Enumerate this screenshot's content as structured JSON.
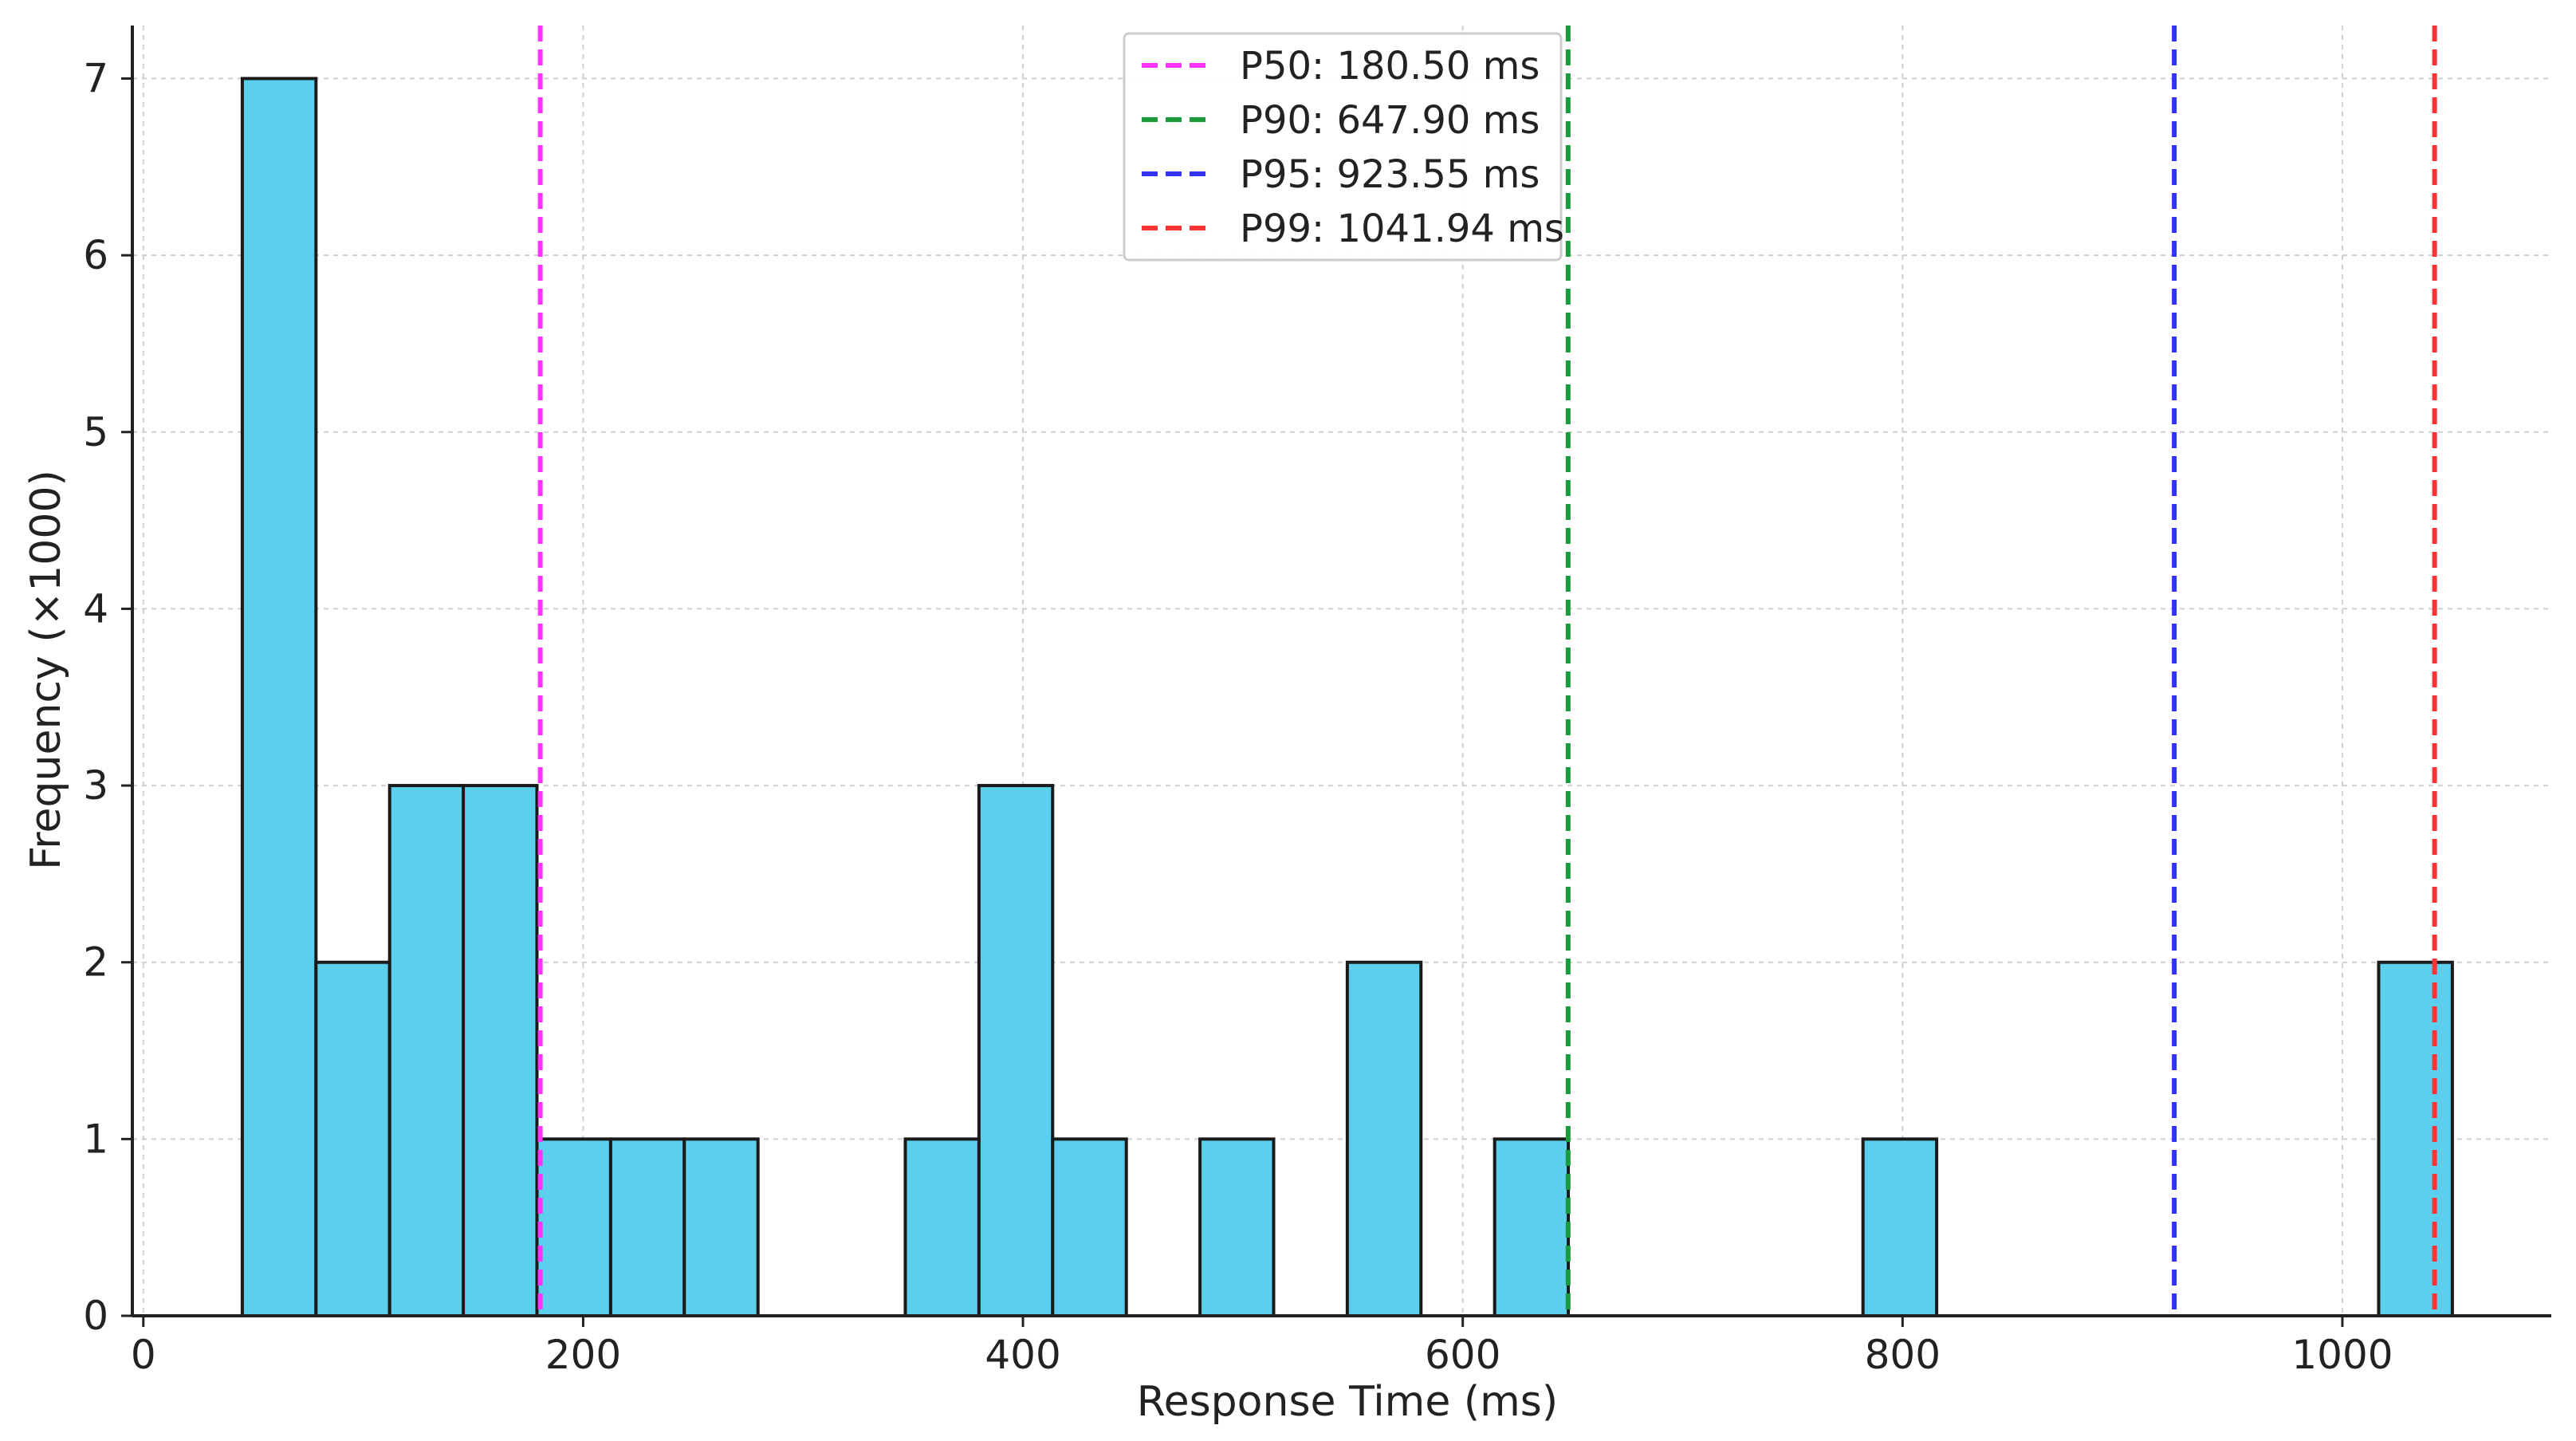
{
  "chart_data": {
    "type": "bar",
    "xlabel": "Response Time (ms)",
    "ylabel": "Frequency (×1000)",
    "xlim": [
      -5,
      1095
    ],
    "ylim": [
      0,
      7.3
    ],
    "x_ticks": [
      0,
      200,
      400,
      600,
      800,
      1000
    ],
    "y_ticks": [
      0,
      1,
      2,
      3,
      4,
      5,
      6,
      7
    ],
    "grid": true,
    "bin_width": 33.5,
    "bins": [
      {
        "x0": 45,
        "x1": 78.5,
        "value": 7
      },
      {
        "x0": 78.5,
        "x1": 112,
        "value": 2
      },
      {
        "x0": 112,
        "x1": 145.5,
        "value": 3
      },
      {
        "x0": 145.5,
        "x1": 179,
        "value": 3
      },
      {
        "x0": 179,
        "x1": 212.5,
        "value": 1
      },
      {
        "x0": 212.5,
        "x1": 246,
        "value": 1
      },
      {
        "x0": 246,
        "x1": 279.5,
        "value": 1
      },
      {
        "x0": 346.5,
        "x1": 380,
        "value": 1
      },
      {
        "x0": 380,
        "x1": 413.5,
        "value": 3
      },
      {
        "x0": 413.5,
        "x1": 447,
        "value": 1
      },
      {
        "x0": 480.5,
        "x1": 514,
        "value": 1
      },
      {
        "x0": 547.5,
        "x1": 581,
        "value": 2
      },
      {
        "x0": 614.5,
        "x1": 648,
        "value": 1
      },
      {
        "x0": 782,
        "x1": 815.5,
        "value": 1
      },
      {
        "x0": 1016.5,
        "x1": 1050,
        "value": 2
      }
    ],
    "bar_color": "#5bcfec",
    "percentile_lines": [
      {
        "label": "P50: 180.50 ms",
        "value": 180.5,
        "color": "#ff33ff"
      },
      {
        "label": "P90: 647.90 ms",
        "value": 647.9,
        "color": "#1a9a3a"
      },
      {
        "label": "P95: 923.55 ms",
        "value": 923.55,
        "color": "#3333ff"
      },
      {
        "label": "P99: 1041.94 ms",
        "value": 1041.94,
        "color": "#ff3333"
      }
    ],
    "legend_position": "top-center"
  }
}
